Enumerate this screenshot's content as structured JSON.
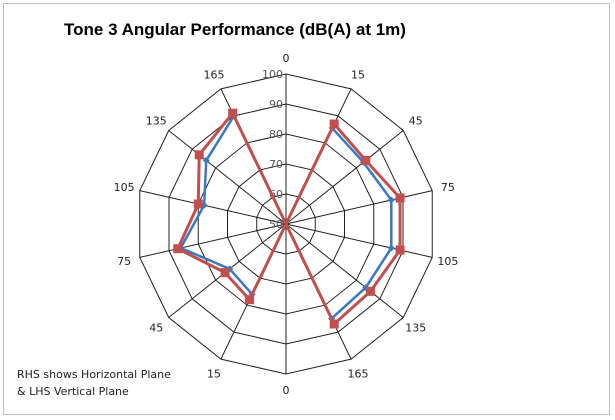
{
  "chart_data": {
    "type": "radar",
    "title": "Tone 3 Angular Performance (dB(A) at 1m)",
    "note": [
      "RHS shows Horizontal Plane",
      "& LHS Vertical Plane"
    ],
    "axis_labels": [
      "0",
      "15",
      "45",
      "75",
      "105",
      "135",
      "165",
      "0",
      "15",
      "45",
      "75",
      "105",
      "135",
      "165"
    ],
    "radial_ticks": [
      50,
      60,
      70,
      80,
      90,
      100
    ],
    "rlim": [
      50,
      100
    ],
    "series": [
      {
        "color": "#3a78bf",
        "values": [
          50,
          85.5,
          83,
          86,
          86,
          84,
          85,
          50,
          76,
          74,
          86,
          78,
          84,
          90
        ]
      },
      {
        "color": "#c0504d",
        "values": [
          50,
          87,
          84,
          89,
          89,
          86,
          87,
          50,
          78,
          76,
          87,
          80,
          87,
          91
        ]
      }
    ]
  }
}
